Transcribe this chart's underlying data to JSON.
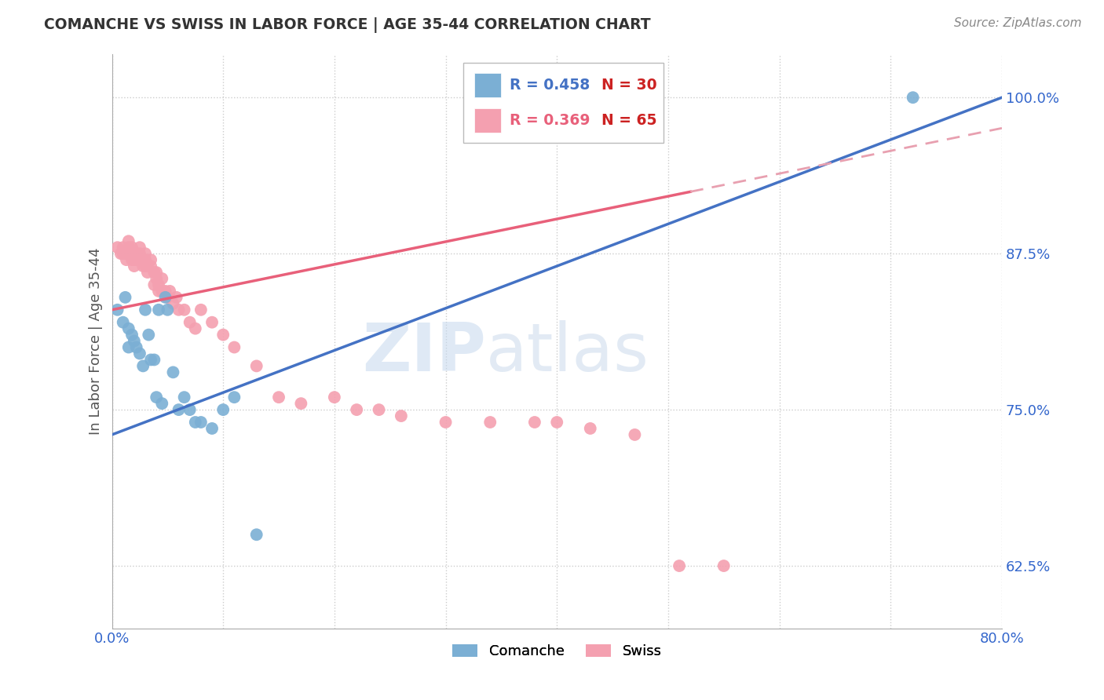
{
  "title": "COMANCHE VS SWISS IN LABOR FORCE | AGE 35-44 CORRELATION CHART",
  "source": "Source: ZipAtlas.com",
  "ylabel": "In Labor Force | Age 35-44",
  "xlim": [
    0.0,
    0.8
  ],
  "ylim": [
    0.575,
    1.035
  ],
  "xtick_positions": [
    0.0,
    0.1,
    0.2,
    0.3,
    0.4,
    0.5,
    0.6,
    0.7,
    0.8
  ],
  "xticklabels": [
    "0.0%",
    "",
    "",
    "",
    "",
    "",
    "",
    "",
    "80.0%"
  ],
  "ytick_positions": [
    0.625,
    0.75,
    0.875,
    1.0
  ],
  "ytick_labels": [
    "62.5%",
    "75.0%",
    "87.5%",
    "100.0%"
  ],
  "comanche_color": "#7bafd4",
  "swiss_color": "#f4a0b0",
  "comanche_line_color": "#4472c4",
  "swiss_line_color": "#e8607a",
  "swiss_dashed_color": "#e8a0b0",
  "legend_r_comanche": "R = 0.458",
  "legend_n_comanche": "N = 30",
  "legend_r_swiss": "R = 0.369",
  "legend_n_swiss": "N = 65",
  "watermark_zip": "ZIP",
  "watermark_atlas": "atlas",
  "background_color": "#ffffff",
  "grid_color": "#cccccc",
  "comanche_x": [
    0.005,
    0.01,
    0.012,
    0.015,
    0.015,
    0.018,
    0.02,
    0.022,
    0.025,
    0.028,
    0.03,
    0.033,
    0.035,
    0.038,
    0.04,
    0.042,
    0.045,
    0.048,
    0.05,
    0.055,
    0.06,
    0.065,
    0.07,
    0.075,
    0.08,
    0.09,
    0.1,
    0.11,
    0.13,
    0.72
  ],
  "comanche_y": [
    0.83,
    0.82,
    0.84,
    0.815,
    0.8,
    0.81,
    0.805,
    0.8,
    0.795,
    0.785,
    0.83,
    0.81,
    0.79,
    0.79,
    0.76,
    0.83,
    0.755,
    0.84,
    0.83,
    0.78,
    0.75,
    0.76,
    0.75,
    0.74,
    0.74,
    0.735,
    0.75,
    0.76,
    0.65,
    1.0
  ],
  "swiss_x": [
    0.005,
    0.008,
    0.01,
    0.01,
    0.012,
    0.013,
    0.015,
    0.015,
    0.015,
    0.018,
    0.018,
    0.018,
    0.02,
    0.02,
    0.02,
    0.022,
    0.022,
    0.025,
    0.025,
    0.025,
    0.028,
    0.028,
    0.03,
    0.03,
    0.03,
    0.032,
    0.032,
    0.035,
    0.035,
    0.038,
    0.038,
    0.04,
    0.04,
    0.042,
    0.042,
    0.045,
    0.045,
    0.048,
    0.05,
    0.052,
    0.055,
    0.058,
    0.06,
    0.065,
    0.07,
    0.075,
    0.08,
    0.09,
    0.1,
    0.11,
    0.13,
    0.15,
    0.17,
    0.2,
    0.22,
    0.24,
    0.26,
    0.3,
    0.34,
    0.38,
    0.4,
    0.43,
    0.47,
    0.51,
    0.55
  ],
  "swiss_y": [
    0.88,
    0.875,
    0.88,
    0.875,
    0.875,
    0.87,
    0.885,
    0.88,
    0.875,
    0.88,
    0.875,
    0.87,
    0.875,
    0.87,
    0.865,
    0.875,
    0.87,
    0.88,
    0.875,
    0.87,
    0.87,
    0.865,
    0.875,
    0.87,
    0.865,
    0.865,
    0.86,
    0.87,
    0.865,
    0.86,
    0.85,
    0.86,
    0.855,
    0.85,
    0.845,
    0.855,
    0.845,
    0.845,
    0.84,
    0.845,
    0.835,
    0.84,
    0.83,
    0.83,
    0.82,
    0.815,
    0.83,
    0.82,
    0.81,
    0.8,
    0.785,
    0.76,
    0.755,
    0.76,
    0.75,
    0.75,
    0.745,
    0.74,
    0.74,
    0.74,
    0.74,
    0.735,
    0.73,
    0.625,
    0.625
  ]
}
